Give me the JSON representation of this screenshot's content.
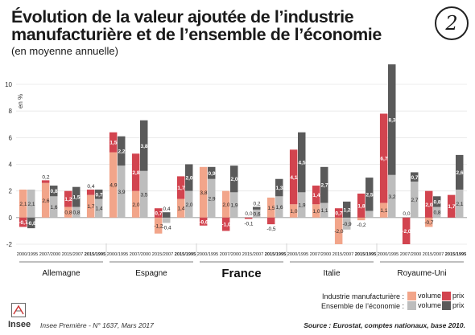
{
  "header": {
    "title": "Évolution de la valeur ajoutée de l’industrie manufacturière et de l’ensemble de l’économie",
    "subtitle": "(en moyenne annuelle)",
    "badge": "2"
  },
  "legend": {
    "row1_label": "Industrie manufacturière :",
    "row2_label": "Ensemble de l’économie :",
    "volume": "volume",
    "prix": "prix"
  },
  "footer": {
    "logo_text": "Insee",
    "reference": "Insee Première - N° 1637, Mars 2017",
    "source": "Source : Eurostat, comptes nationaux, base 2010."
  },
  "colors": {
    "industry_volume": "#f2a58a",
    "industry_prix": "#d2444f",
    "economy_volume": "#bdbdbd",
    "economy_prix": "#5a5a5a"
  },
  "chart_data": {
    "type": "bar",
    "ylabel": "en %",
    "ylim": [
      -2,
      10
    ],
    "yticks": [
      -2,
      0,
      2,
      4,
      6,
      8,
      10
    ],
    "period_labels": [
      "2000/1995",
      "2007/2000",
      "2015/2007",
      "2015/1995"
    ],
    "countries": [
      {
        "name": "Allemagne",
        "periods": [
          {
            "ind_vol": 2.1,
            "ind_prix": -0.7,
            "eco_vol": 2.1,
            "eco_prix": -0.8
          },
          {
            "ind_vol": 2.6,
            "ind_prix": 0.2,
            "eco_vol": 1.6,
            "eco_prix": 0.8
          },
          {
            "ind_vol": 0.8,
            "ind_prix": 1.2,
            "eco_vol": 0.8,
            "eco_prix": 1.5
          },
          {
            "ind_vol": 1.7,
            "ind_prix": 0.4,
            "eco_vol": 1.4,
            "eco_prix": 0.7
          }
        ]
      },
      {
        "name": "Espagne",
        "periods": [
          {
            "ind_vol": 4.9,
            "ind_prix": 1.5,
            "eco_vol": 3.9,
            "eco_prix": 2.2
          },
          {
            "ind_vol": 2.0,
            "ind_prix": 2.8,
            "eco_vol": 3.5,
            "eco_prix": 3.8
          },
          {
            "ind_vol": -1.2,
            "ind_prix": 0.7,
            "eco_vol": -0.4,
            "eco_prix": 0.4
          },
          {
            "ind_vol": 1.4,
            "ind_prix": 1.7,
            "eco_vol": 2.0,
            "eco_prix": 2.0
          }
        ]
      },
      {
        "name": "France",
        "periods": [
          {
            "ind_vol": 3.8,
            "ind_prix": -0.6,
            "eco_vol": 2.9,
            "eco_prix": 0.9
          },
          {
            "ind_vol": 2.0,
            "ind_prix": -1.0,
            "eco_vol": 1.9,
            "eco_prix": 2.0
          },
          {
            "ind_vol": 0.0,
            "ind_prix": -0.1,
            "eco_vol": 0.6,
            "eco_prix": 0.2
          },
          {
            "ind_vol": 1.5,
            "ind_prix": -0.5,
            "eco_vol": 1.6,
            "eco_prix": 1.3
          }
        ]
      },
      {
        "name": "Italie",
        "periods": [
          {
            "ind_vol": 1.0,
            "ind_prix": 4.1,
            "eco_vol": 1.9,
            "eco_prix": 4.5
          },
          {
            "ind_vol": 1.0,
            "ind_prix": 1.4,
            "eco_vol": 1.1,
            "eco_prix": 2.7
          },
          {
            "ind_vol": -2.0,
            "ind_prix": 0.7,
            "eco_vol": -0.9,
            "eco_prix": 1.2
          },
          {
            "ind_vol": -0.2,
            "ind_prix": 1.8,
            "eco_vol": 0.5,
            "eco_prix": 2.5
          }
        ]
      },
      {
        "name": "Royaume-Uni",
        "periods": [
          {
            "ind_vol": 1.1,
            "ind_prix": 6.7,
            "eco_vol": 3.2,
            "eco_prix": 8.3
          },
          {
            "ind_vol": 0.0,
            "ind_prix": -2.0,
            "eco_vol": 2.7,
            "eco_prix": 0.7
          },
          {
            "ind_vol": -0.7,
            "ind_prix": 2.0,
            "eco_vol": 0.8,
            "eco_prix": 0.8
          },
          {
            "ind_vol": 0.0,
            "ind_prix": 1.7,
            "eco_vol": 2.1,
            "eco_prix": 2.6
          }
        ]
      }
    ]
  }
}
